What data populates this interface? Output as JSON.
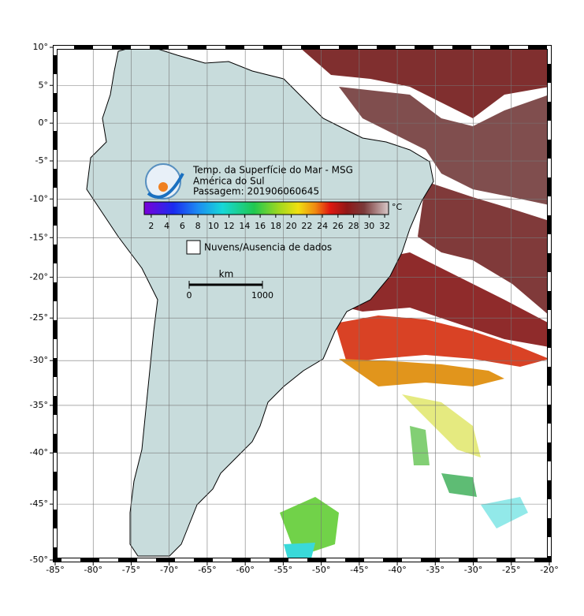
{
  "title_lines": [
    "Temp. da Superfície do Mar - MSG",
    "América do Sul",
    "Passagem: 201906060645"
  ],
  "colorbar": {
    "unit": "°C",
    "lim": [
      1.1,
      32.5
    ],
    "ticks": [
      2,
      4,
      6,
      8,
      10,
      12,
      14,
      16,
      18,
      20,
      22,
      24,
      26,
      28,
      30,
      32
    ]
  },
  "legend": {
    "clouds": "Nuvens/Ausencia de dados"
  },
  "scale_bar": {
    "unit": "km",
    "ticks": [
      0,
      1000
    ]
  },
  "map": {
    "lonlim": [
      -85,
      -20
    ],
    "latlim": [
      -50,
      10
    ],
    "lon_ticks": [
      {
        "value": -85,
        "label": "-85°"
      },
      {
        "value": -80,
        "label": "-80°"
      },
      {
        "value": -75,
        "label": "-75°"
      },
      {
        "value": -70,
        "label": "-70°"
      },
      {
        "value": -65,
        "label": "-65°"
      },
      {
        "value": -60,
        "label": "-60°"
      },
      {
        "value": -55,
        "label": "-55°"
      },
      {
        "value": -50,
        "label": "-50°"
      },
      {
        "value": -45,
        "label": "-45°"
      },
      {
        "value": -40,
        "label": "-40°"
      },
      {
        "value": -35,
        "label": "-35°"
      },
      {
        "value": -30,
        "label": "-30°"
      },
      {
        "value": -25,
        "label": "-25°"
      },
      {
        "value": -20,
        "label": "-20°"
      }
    ],
    "lat_ticks": [
      {
        "value": 10,
        "label": "10°"
      },
      {
        "value": 5,
        "label": "5°"
      },
      {
        "value": 0,
        "label": "0°"
      },
      {
        "value": -5,
        "label": "-5°"
      },
      {
        "value": -10,
        "label": "-10°"
      },
      {
        "value": -15,
        "label": "-15°"
      },
      {
        "value": -20,
        "label": "-20°"
      },
      {
        "value": -25,
        "label": "-25°"
      },
      {
        "value": -30,
        "label": "-30°"
      },
      {
        "value": -35,
        "label": "-35°"
      },
      {
        "value": -40,
        "label": "-40°"
      },
      {
        "value": -45,
        "label": "-45°"
      },
      {
        "value": -50,
        "label": "-50°"
      }
    ]
  }
}
